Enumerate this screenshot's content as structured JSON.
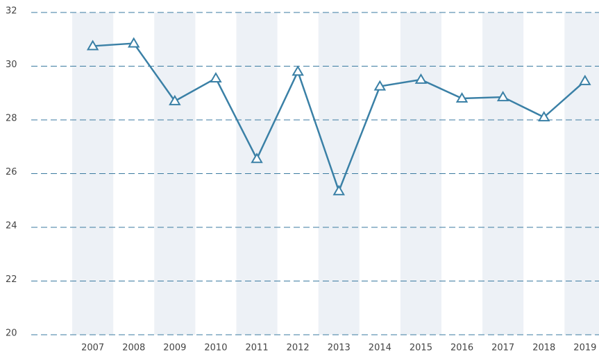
{
  "chart_data": {
    "type": "line",
    "categories": [
      "2007",
      "2008",
      "2009",
      "2010",
      "2011",
      "2012",
      "2013",
      "2014",
      "2015",
      "2016",
      "2017",
      "2018",
      "2019"
    ],
    "series": [
      {
        "color": "#3a80a6",
        "values": [
          30.75,
          30.85,
          28.7,
          29.55,
          26.55,
          29.8,
          25.35,
          29.25,
          29.5,
          28.8,
          28.85,
          28.1,
          29.45
        ]
      }
    ],
    "ylim": [
      20,
      32
    ],
    "yticks": [
      20,
      22,
      24,
      26,
      28,
      30,
      32
    ],
    "grid": true
  }
}
